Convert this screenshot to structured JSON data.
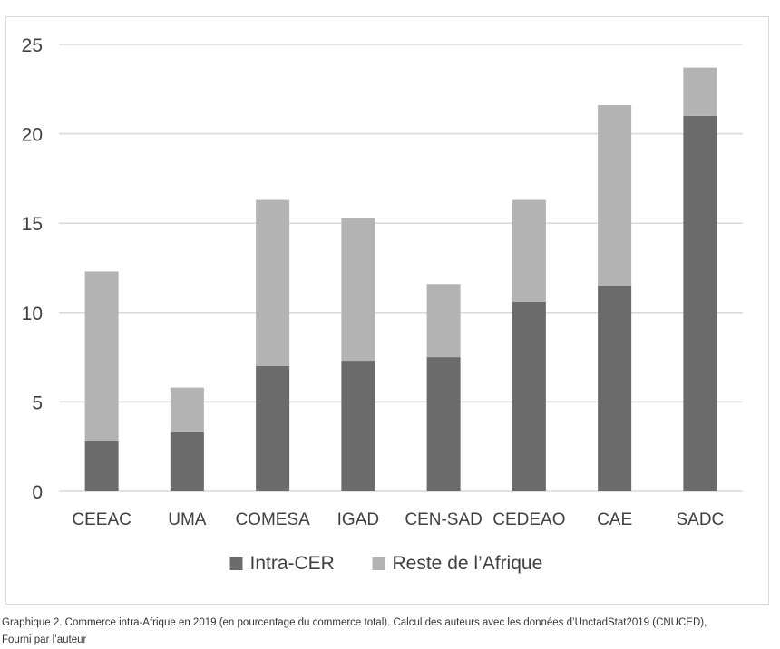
{
  "chart_data": {
    "type": "bar",
    "stacked": true,
    "categories": [
      "CEEAC",
      "UMA",
      "COMESA",
      "IGAD",
      "CEN-SAD",
      "CEDEAO",
      "CAE",
      "SADC"
    ],
    "series": [
      {
        "name": "Intra-CER",
        "color": "#6b6b6b",
        "values": [
          2.8,
          3.3,
          7.0,
          7.3,
          7.5,
          10.6,
          11.5,
          21.0
        ]
      },
      {
        "name": "Reste de l’Afrique",
        "color": "#b3b3b3",
        "values": [
          9.5,
          2.5,
          9.3,
          8.0,
          4.1,
          5.7,
          10.1,
          2.7
        ]
      }
    ],
    "ylim": [
      0,
      25
    ],
    "yticks": [
      0,
      5,
      10,
      15,
      20,
      25
    ],
    "grid": true,
    "legend": "bottom"
  },
  "caption": {
    "line1": "Graphique 2. Commerce intra-Afrique en 2019 (en pourcentage du commerce total). Calcul des auteurs avec les données d’UnctadStat2019 (CNUCED),",
    "line2": "Fourni par l’auteur"
  }
}
